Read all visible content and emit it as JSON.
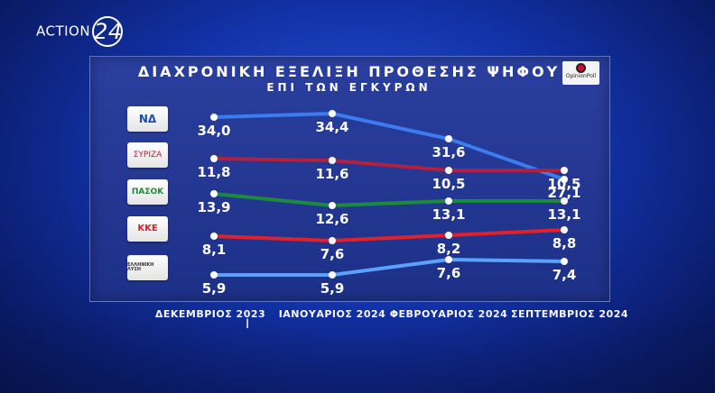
{
  "channel": {
    "name": "ACTION",
    "number": "24"
  },
  "pollster": {
    "name": "OpinionPoll"
  },
  "chart_data": {
    "type": "line",
    "title": "ΔΙΑΧΡΟΝΙΚΗ ΕΞΕΛΙΞΗ ΠΡΟΘΕΣΗΣ ΨΗΦΟΥ",
    "subtitle": "ΕΠΙ ΤΩΝ ΕΓΚΥΡΩΝ",
    "categories": [
      "ΔΕΚΕΜΒΡΙΟΣ 2023",
      "ΙΑΝΟΥΑΡΙΟΣ 2024",
      "ΦΕΒΡΟΥΑΡΙΟΣ 2024",
      "ΣΕΠΤΕΜΒΡΙΟΣ 2024"
    ],
    "series": [
      {
        "name": "ΝΔ",
        "logo": "ΝΔ",
        "color": "#3b7cf0",
        "labels": [
          "34,0",
          "34,4",
          "31,6",
          "27,1"
        ],
        "values": [
          34.0,
          34.4,
          31.6,
          27.1
        ]
      },
      {
        "name": "ΣΥΡΙΖΑ",
        "logo": "ΣΥΡΙΖΑ",
        "color": "#b2203e",
        "labels": [
          "11,8",
          "11,6",
          "10,5",
          "10,5"
        ],
        "values": [
          11.8,
          11.6,
          10.5,
          10.5
        ]
      },
      {
        "name": "ΠΑΣΟΚ",
        "logo": "ΠΑΣΟΚ",
        "color": "#1d8a3a",
        "labels": [
          "13,9",
          "12,6",
          "13,1",
          "13,1"
        ],
        "values": [
          13.9,
          12.6,
          13.1,
          13.1
        ]
      },
      {
        "name": "ΚΚΕ",
        "logo": "ΚΚΕ",
        "color": "#e0202a",
        "labels": [
          "8,1",
          "7,6",
          "8,2",
          "8,8"
        ],
        "values": [
          8.1,
          7.6,
          8.2,
          8.8
        ]
      },
      {
        "name": "ΕΛΛΗΝΙΚΗ ΛΥΣΗ",
        "logo": "ΕΛΛΗΝΙΚΗ ΛΥΣΗ",
        "color": "#5aa2ff",
        "labels": [
          "5,9",
          "5,9",
          "7,6",
          "7,4"
        ],
        "values": [
          5.9,
          5.9,
          7.6,
          7.4
        ]
      }
    ]
  }
}
